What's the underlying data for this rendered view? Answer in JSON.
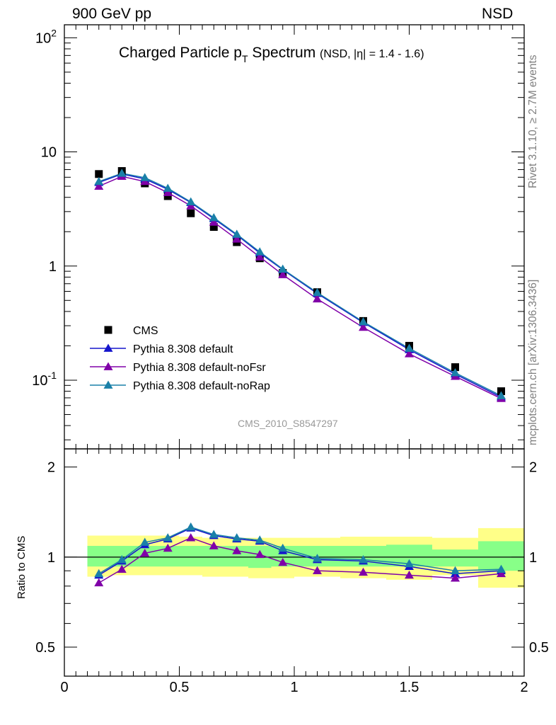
{
  "header": {
    "left": "900 GeV pp",
    "right": "NSD"
  },
  "side_text": {
    "top": "Rivet 3.1.10, ≥ 2.7M events",
    "bottom": "mcplots.cern.ch [arXiv:1306.3436]"
  },
  "chart_data": [
    {
      "type": "scatter",
      "title": "Charged Particle p_T Spectrum",
      "title_main": "Charged Particle p",
      "title_sub": "T",
      "title_tail": " Spectrum",
      "subtitle": "(NSD, |η| = 1.4 - 1.6)",
      "watermark": "CMS_2010_S8547297",
      "xlim": [
        0,
        2
      ],
      "ylim": [
        0.025,
        130
      ],
      "yscale": "log",
      "ytick_labels": [
        "10^-1",
        "1",
        "10",
        "10^2"
      ],
      "legend_position": "lower-left",
      "x": [
        0.15,
        0.25,
        0.35,
        0.45,
        0.55,
        0.65,
        0.75,
        0.85,
        0.95,
        1.1,
        1.3,
        1.5,
        1.7,
        1.9
      ],
      "series": [
        {
          "name": "CMS",
          "color": "#000000",
          "marker": "square",
          "values": [
            6.4,
            6.8,
            5.3,
            4.1,
            2.9,
            2.2,
            1.62,
            1.17,
            0.87,
            0.59,
            0.33,
            0.2,
            0.13,
            0.08
          ]
        },
        {
          "name": "Pythia 8.308 default",
          "color": "#1515cc",
          "marker": "triangle",
          "values": [
            5.4,
            6.4,
            5.8,
            4.7,
            3.6,
            2.6,
            1.87,
            1.3,
            0.93,
            0.575,
            0.32,
            0.185,
            0.113,
            0.071
          ]
        },
        {
          "name": "Pythia 8.308 default-noFsr",
          "color": "#8000a8",
          "marker": "triangle",
          "values": [
            5.0,
            6.1,
            5.5,
            4.4,
            3.37,
            2.42,
            1.72,
            1.2,
            0.84,
            0.515,
            0.29,
            0.17,
            0.108,
            0.069
          ]
        },
        {
          "name": "Pythia 8.308 default-noRap",
          "color": "#1a80a8",
          "marker": "triangle",
          "values": [
            5.5,
            6.5,
            5.95,
            4.8,
            3.65,
            2.65,
            1.9,
            1.33,
            0.94,
            0.585,
            0.325,
            0.19,
            0.116,
            0.073
          ]
        }
      ]
    },
    {
      "type": "line",
      "ylabel": "Ratio to CMS",
      "xlim": [
        0,
        2
      ],
      "ylim": [
        0.4,
        2.3
      ],
      "yscale": "log",
      "ytick_labels": [
        "0.5",
        "1",
        "2"
      ],
      "xtick_labels": [
        "0",
        "0.5",
        "1",
        "1.5",
        "2"
      ],
      "x": [
        0.15,
        0.25,
        0.35,
        0.45,
        0.55,
        0.65,
        0.75,
        0.85,
        0.95,
        1.1,
        1.3,
        1.5,
        1.7,
        1.9
      ],
      "bands": {
        "bin_edges": [
          0.1,
          0.2,
          0.3,
          0.4,
          0.5,
          0.6,
          0.7,
          0.8,
          0.9,
          1.0,
          1.2,
          1.4,
          1.6,
          1.8,
          2.0
        ],
        "outer_low": [
          0.86,
          0.87,
          0.87,
          0.87,
          0.87,
          0.86,
          0.86,
          0.85,
          0.85,
          0.86,
          0.85,
          0.84,
          0.87,
          0.79
        ],
        "outer_high": [
          1.18,
          1.18,
          1.18,
          1.18,
          1.17,
          1.16,
          1.16,
          1.16,
          1.16,
          1.16,
          1.17,
          1.17,
          1.16,
          1.25
        ],
        "inner_low": [
          0.93,
          0.93,
          0.93,
          0.93,
          0.93,
          0.93,
          0.93,
          0.92,
          0.93,
          0.93,
          0.93,
          0.93,
          0.93,
          0.9
        ],
        "inner_high": [
          1.09,
          1.09,
          1.09,
          1.09,
          1.09,
          1.09,
          1.09,
          1.09,
          1.09,
          1.09,
          1.09,
          1.1,
          1.06,
          1.13
        ],
        "outer_color": "#ffff88",
        "inner_color": "#88ff88"
      },
      "series": [
        {
          "name": "Pythia 8.308 default",
          "color": "#1515cc",
          "values": [
            0.87,
            0.97,
            1.1,
            1.15,
            1.25,
            1.18,
            1.15,
            1.13,
            1.05,
            0.98,
            0.97,
            0.93,
            0.88,
            0.9
          ]
        },
        {
          "name": "Pythia 8.308 default-noFsr",
          "color": "#8000a8",
          "values": [
            0.82,
            0.91,
            1.03,
            1.07,
            1.16,
            1.09,
            1.05,
            1.02,
            0.96,
            0.9,
            0.89,
            0.87,
            0.85,
            0.88
          ]
        },
        {
          "name": "Pythia 8.308 default-noRap",
          "color": "#1a80a8",
          "values": [
            0.88,
            0.98,
            1.12,
            1.16,
            1.26,
            1.19,
            1.16,
            1.14,
            1.07,
            0.99,
            0.98,
            0.95,
            0.9,
            0.91
          ]
        }
      ]
    }
  ]
}
